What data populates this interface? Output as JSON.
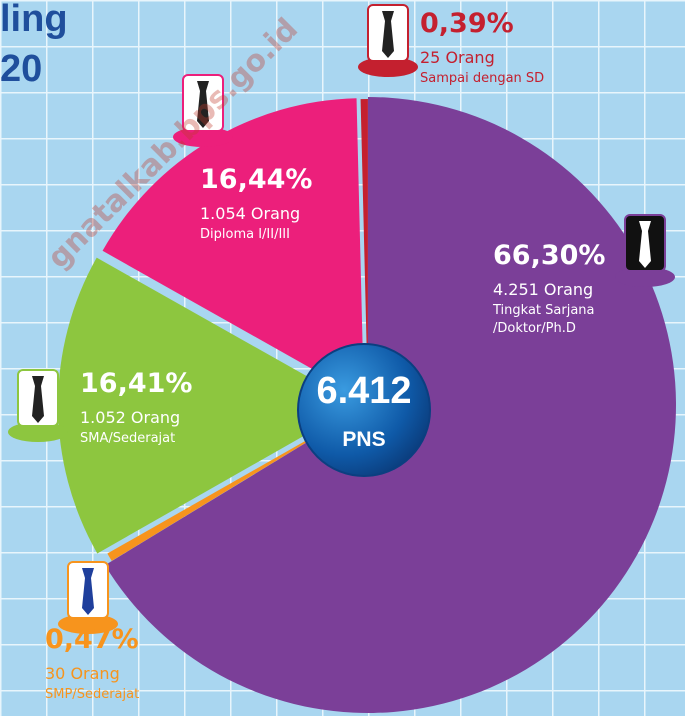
{
  "header": {
    "title_lines": [
      "ling",
      "20"
    ],
    "watermark": "gnatalkab.bps.go.id"
  },
  "chart_data": {
    "type": "pie",
    "categories": [
      "Tingkat Sarjana /Doktor/Ph.D",
      "SMP/Sederajat",
      "SMA/Sederajat",
      "Diploma I/II/III",
      "Sampai dengan SD"
    ],
    "values": [
      66.3,
      0.47,
      16.41,
      16.44,
      0.39
    ],
    "value_labels": [
      "66,30%",
      "0,47%",
      "16,41%",
      "16,44%",
      "0,39%"
    ],
    "count_labels": [
      "4.251 Orang",
      "30 Orang",
      "1.052 Orang",
      "1.054 Orang",
      "25 Orang"
    ],
    "colors": [
      "#7b3f98",
      "#f7941d",
      "#8dc63f",
      "#ec1f7b",
      "#c4202f"
    ],
    "center_value": "6.412",
    "center_label": "PNS"
  }
}
